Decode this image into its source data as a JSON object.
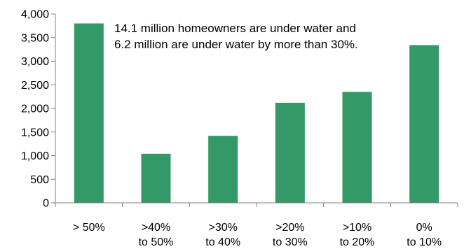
{
  "chart_data": {
    "type": "bar",
    "categories": [
      [
        "> 50%"
      ],
      [
        ">40%",
        "to 50%"
      ],
      [
        ">30%",
        "to 40%"
      ],
      [
        ">20%",
        "to 30%"
      ],
      [
        ">10%",
        "to 20%"
      ],
      [
        "0%",
        "to 10%"
      ]
    ],
    "values": [
      3800,
      1040,
      1420,
      2120,
      2350,
      3340
    ],
    "ylim": [
      0,
      4000
    ],
    "yticks": [
      0,
      500,
      1000,
      1500,
      2000,
      2500,
      3000,
      3500,
      4000
    ],
    "ytick_labels": [
      "0",
      "500",
      "1,000",
      "1,500",
      "2,000",
      "2,500",
      "3,000",
      "3,500",
      "4,000"
    ],
    "annotation": [
      "14.1 million homeowners are under water and",
      "6.2 million are under water by more than 30%."
    ],
    "bar_color": "#339966",
    "grid": false
  }
}
